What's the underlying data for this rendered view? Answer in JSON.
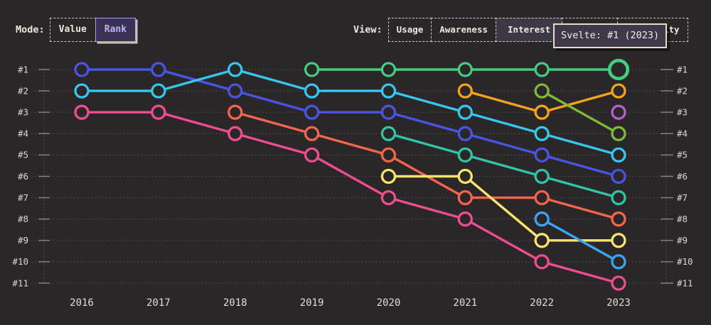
{
  "page": {
    "background": "#2b2728"
  },
  "header": {
    "mode_label": "Mode:",
    "mode_options": [
      {
        "label": "Value",
        "selected": false
      },
      {
        "label": "Rank",
        "selected": true
      }
    ],
    "view_label": "View:",
    "view_options": [
      {
        "label": "Usage",
        "selected": false
      },
      {
        "label": "Awareness",
        "selected": false
      },
      {
        "label": "Interest",
        "selected": true
      },
      {
        "label": "",
        "selected": false,
        "obscured_by_tooltip": true
      },
      {
        "label": "Positivity",
        "selected": false,
        "partially_obscured_by_tooltip": true
      }
    ]
  },
  "tooltip": {
    "text": "Svelte: #1 (2023)",
    "background": "#3e3849",
    "border_color": "#e8dcc8"
  },
  "accent_colors": {
    "selected_mode_text": "#c0b1f8",
    "selected_mode_border": "#a89bf1",
    "axis_label": "#ddd8cd",
    "gridline": "#585251",
    "tick": "#8d867c"
  },
  "chart_data": {
    "type": "line",
    "variant": "bump-rank",
    "x": [
      2016,
      2017,
      2018,
      2019,
      2020,
      2021,
      2022,
      2023
    ],
    "x_labels": [
      "2016",
      "2017",
      "2018",
      "2019",
      "2020",
      "2021",
      "2022",
      "2023"
    ],
    "y_ticks": [
      "#1",
      "#2",
      "#3",
      "#4",
      "#5",
      "#6",
      "#7",
      "#8",
      "#9",
      "#10",
      "#11"
    ],
    "y_axis": "rank (1 = best, shown on both sides)",
    "grid": "dotted-horizontal",
    "series": [
      {
        "id": "blue",
        "color": "#4a54e4",
        "ranks": [
          1,
          1,
          2,
          3,
          3,
          4,
          5,
          6
        ]
      },
      {
        "id": "cyan",
        "color": "#35c7ee",
        "ranks": [
          2,
          2,
          1,
          2,
          2,
          3,
          4,
          5
        ]
      },
      {
        "id": "pink",
        "color": "#ee4d92",
        "ranks": [
          3,
          3,
          4,
          5,
          7,
          8,
          10,
          11
        ]
      },
      {
        "id": "coral",
        "color": "#f3654d",
        "ranks": [
          null,
          null,
          3,
          4,
          5,
          7,
          7,
          8
        ]
      },
      {
        "id": "svelte",
        "color": "#44cd80",
        "ranks": [
          null,
          null,
          null,
          1,
          1,
          1,
          1,
          1
        ]
      },
      {
        "id": "teal",
        "color": "#2fc5a7",
        "ranks": [
          null,
          null,
          null,
          null,
          4,
          5,
          6,
          7
        ]
      },
      {
        "id": "yellow",
        "color": "#f8e56d",
        "ranks": [
          null,
          null,
          null,
          null,
          6,
          6,
          9,
          9
        ]
      },
      {
        "id": "amber",
        "color": "#f4a41a",
        "ranks": [
          null,
          null,
          null,
          null,
          null,
          2,
          3,
          2
        ]
      },
      {
        "id": "sky",
        "color": "#38a6f2",
        "ranks": [
          null,
          null,
          null,
          null,
          null,
          null,
          8,
          10
        ]
      },
      {
        "id": "olive",
        "color": "#7eba39",
        "ranks": [
          null,
          null,
          null,
          null,
          null,
          null,
          2,
          4
        ]
      },
      {
        "id": "purple",
        "color": "#b45fd3",
        "ranks": [
          null,
          null,
          null,
          null,
          null,
          null,
          null,
          3
        ]
      }
    ],
    "hovered_point": {
      "series": "svelte",
      "year": 2023,
      "rank": 1
    }
  }
}
